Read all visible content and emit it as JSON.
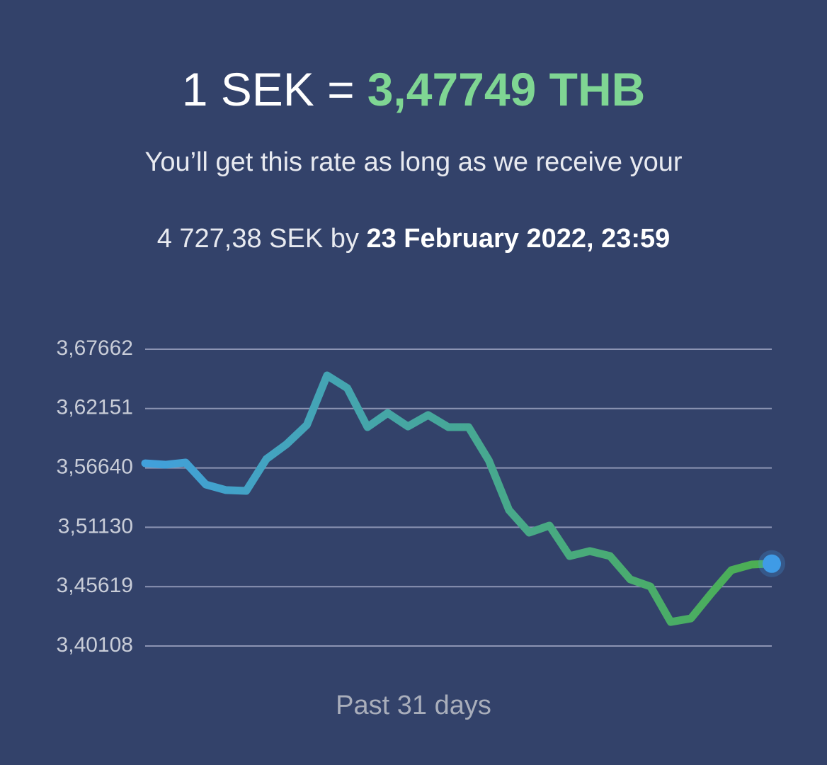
{
  "header": {
    "rate_left": "1 SEK =",
    "rate_right": "3,47749 THB",
    "subtitle": "You’ll get this rate as long as we receive your",
    "amount": "4 727,38 SEK by",
    "deadline": "23 February 2022, 23:59"
  },
  "chart_data": {
    "type": "line",
    "x_label": "Past 31 days",
    "values": [
      3.5707,
      3.5694,
      3.5714,
      3.551,
      3.5458,
      3.5451,
      3.5747,
      3.5885,
      3.6063,
      3.6523,
      3.6405,
      3.6043,
      3.6174,
      3.6049,
      3.6155,
      3.6043,
      3.6043,
      3.5734,
      3.5273,
      3.5063,
      3.5129,
      3.4846,
      3.4892,
      3.4846,
      3.4629,
      3.4563,
      3.4234,
      3.4267,
      3.4498,
      3.4715,
      3.4767,
      3.47749
    ],
    "ylim": [
      3.40108,
      3.67662
    ],
    "yticks": [
      {
        "value": 3.40108,
        "label": "3,40108"
      },
      {
        "value": 3.45619,
        "label": "3,45619"
      },
      {
        "value": 3.5113,
        "label": "3,51130"
      },
      {
        "value": 3.5664,
        "label": "3,56640"
      },
      {
        "value": 3.62151,
        "label": "3,62151"
      },
      {
        "value": 3.67662,
        "label": "3,67662"
      }
    ],
    "grid": true,
    "gradient": [
      "#41a0dc",
      "#4caf50"
    ],
    "marker_color": "#3f9be6"
  }
}
